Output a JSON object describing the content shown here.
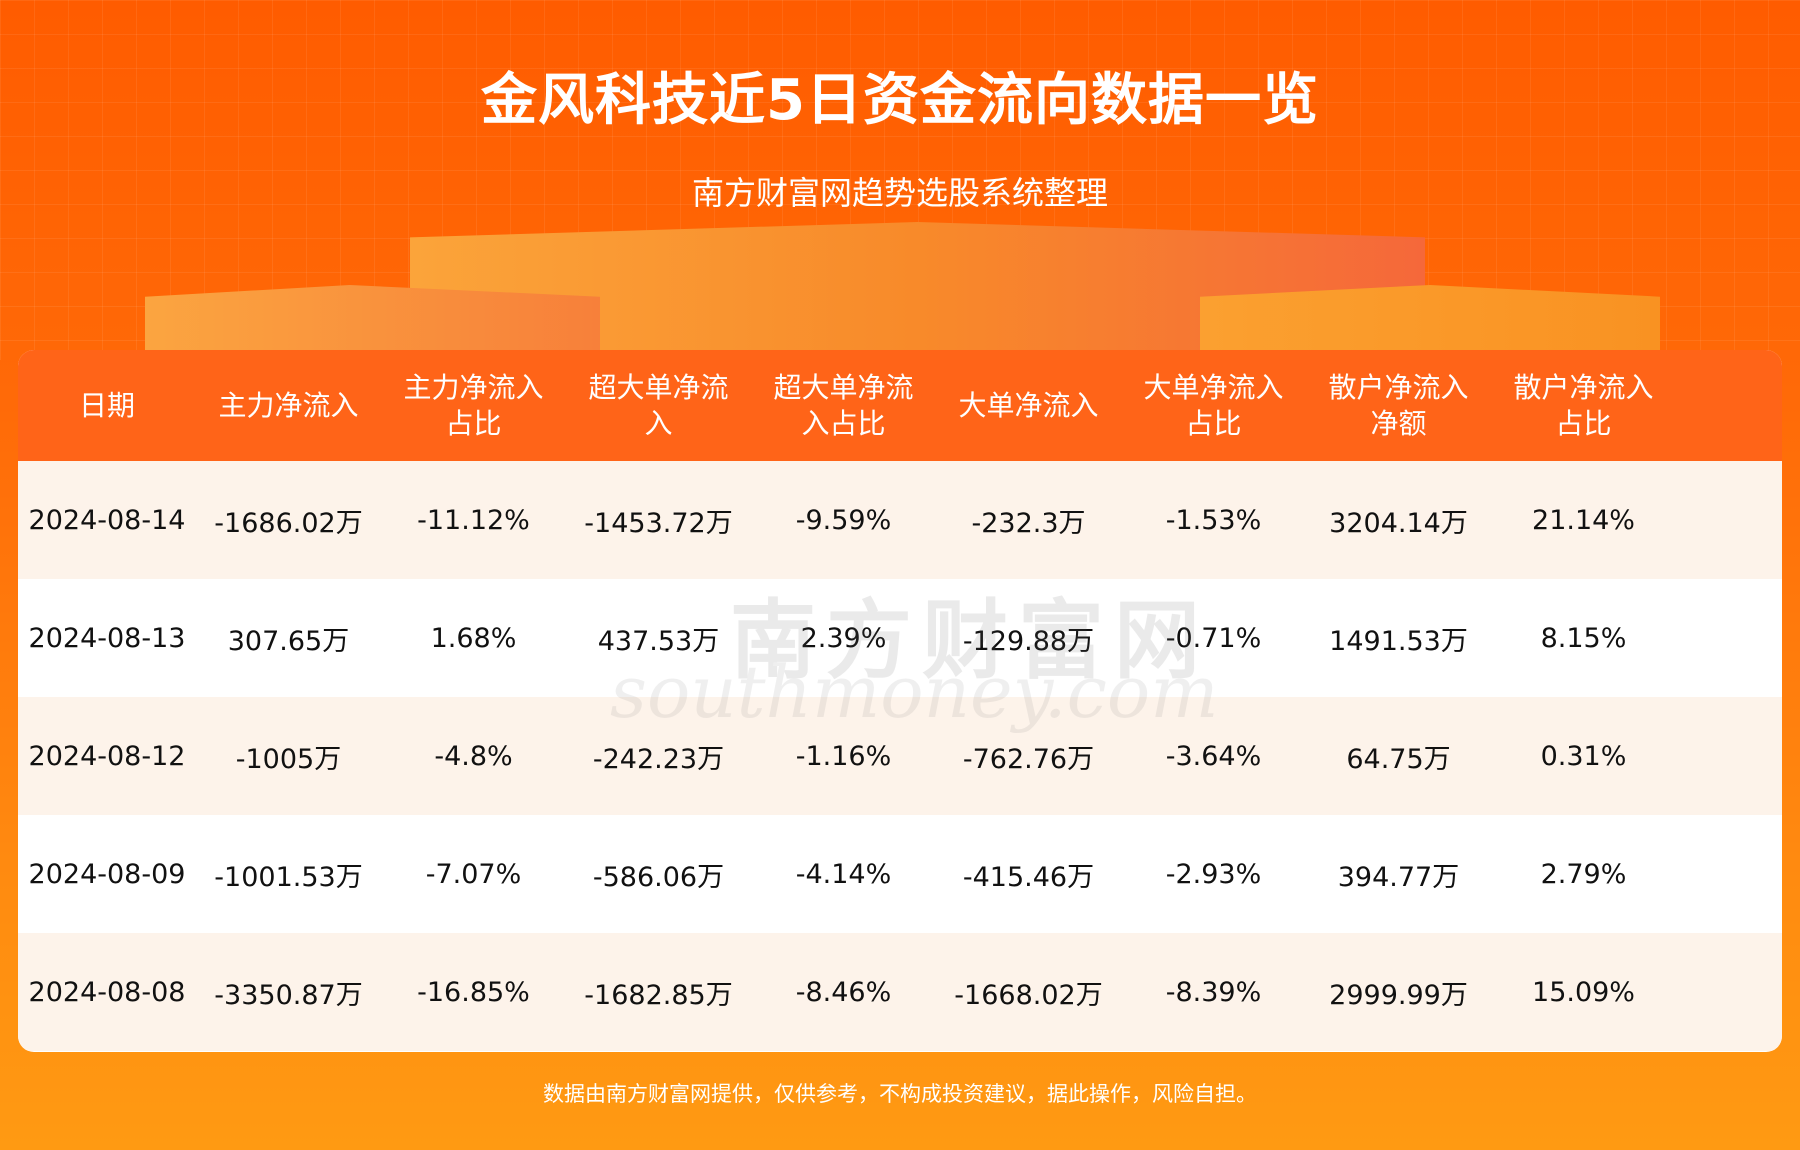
{
  "header": {
    "title": "金风科技近5日资金流向数据一览",
    "subtitle": "南方财富网趋势选股系统整理"
  },
  "colors": {
    "header_bg": "#ff6418",
    "row_alt": "#fdf3ea",
    "background": "#ff6a08"
  },
  "table": {
    "columns": [
      "日期",
      "主力净流入",
      "主力净流入\n占比",
      "超大单净流\n入",
      "超大单净流\n入占比",
      "大单净流入",
      "大单净流入\n占比",
      "散户净流入\n净额",
      "散户净流入\n占比"
    ],
    "rows": [
      [
        "2024-08-14",
        "-1686.02万",
        "-11.12%",
        "-1453.72万",
        "-9.59%",
        "-232.3万",
        "-1.53%",
        "3204.14万",
        "21.14%"
      ],
      [
        "2024-08-13",
        "307.65万",
        "1.68%",
        "437.53万",
        "2.39%",
        "-129.88万",
        "-0.71%",
        "1491.53万",
        "8.15%"
      ],
      [
        "2024-08-12",
        "-1005万",
        "-4.8%",
        "-242.23万",
        "-1.16%",
        "-762.76万",
        "-3.64%",
        "64.75万",
        "0.31%"
      ],
      [
        "2024-08-09",
        "-1001.53万",
        "-7.07%",
        "-586.06万",
        "-4.14%",
        "-415.46万",
        "-2.93%",
        "394.77万",
        "2.79%"
      ],
      [
        "2024-08-08",
        "-3350.87万",
        "-16.85%",
        "-1682.85万",
        "-8.46%",
        "-1668.02万",
        "-8.39%",
        "2999.99万",
        "15.09%"
      ]
    ]
  },
  "watermark": {
    "cn": "南方财富网",
    "en": "southmoney.com"
  },
  "footer": {
    "disclaimer": "数据由南方财富网提供，仅供参考，不构成投资建议，据此操作，风险自担。"
  }
}
